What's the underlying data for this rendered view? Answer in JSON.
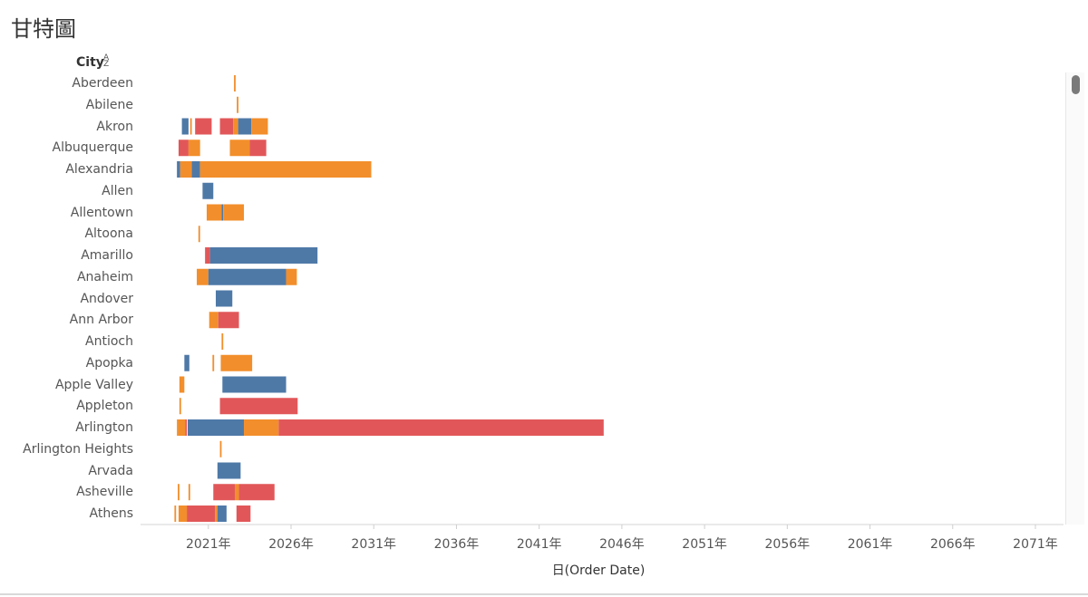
{
  "title": "甘特圖",
  "column_header": "City",
  "sort_icon_name": "sort-alpha-icon",
  "colors": {
    "blue": "#4e79a7",
    "orange": "#f28e2b",
    "red": "#e15759"
  },
  "chart_data": {
    "type": "gantt",
    "x_axis_title": "日(Order Date)",
    "x_unit": "year",
    "xlim": [
      2016.9,
      2072.7
    ],
    "x_ticks": [
      2021,
      2026,
      2031,
      2036,
      2041,
      2046,
      2051,
      2056,
      2061,
      2066,
      2071
    ],
    "x_tick_labels": [
      "2021年",
      "2026年",
      "2031年",
      "2036年",
      "2041年",
      "2046年",
      "2051年",
      "2056年",
      "2061年",
      "2066年",
      "2071年"
    ],
    "categories": [
      "Aberdeen",
      "Abilene",
      "Akron",
      "Albuquerque",
      "Alexandria",
      "Allen",
      "Allentown",
      "Altoona",
      "Amarillo",
      "Anaheim",
      "Andover",
      "Ann Arbor",
      "Antioch",
      "Apopka",
      "Apple Valley",
      "Appleton",
      "Arlington",
      "Arlington Heights",
      "Arvada",
      "Asheville",
      "Athens"
    ],
    "bars": [
      {
        "city": "Aberdeen",
        "segments": [
          {
            "start": 2022.55,
            "end": 2022.65,
            "color": "orange"
          }
        ]
      },
      {
        "city": "Abilene",
        "segments": [
          {
            "start": 2022.72,
            "end": 2022.82,
            "color": "orange"
          }
        ]
      },
      {
        "city": "Akron",
        "segments": [
          {
            "start": 2019.4,
            "end": 2019.8,
            "color": "blue"
          },
          {
            "start": 2019.9,
            "end": 2020.0,
            "color": "orange"
          },
          {
            "start": 2020.2,
            "end": 2021.2,
            "color": "red"
          },
          {
            "start": 2021.7,
            "end": 2022.5,
            "color": "red"
          },
          {
            "start": 2022.5,
            "end": 2022.8,
            "color": "orange"
          },
          {
            "start": 2022.8,
            "end": 2023.6,
            "color": "blue"
          },
          {
            "start": 2023.6,
            "end": 2024.6,
            "color": "orange"
          }
        ]
      },
      {
        "city": "Albuquerque",
        "segments": [
          {
            "start": 2019.2,
            "end": 2019.8,
            "color": "red"
          },
          {
            "start": 2019.8,
            "end": 2020.5,
            "color": "orange"
          },
          {
            "start": 2022.3,
            "end": 2023.5,
            "color": "orange"
          },
          {
            "start": 2023.5,
            "end": 2024.5,
            "color": "red"
          }
        ]
      },
      {
        "city": "Alexandria",
        "segments": [
          {
            "start": 2019.1,
            "end": 2019.3,
            "color": "blue"
          },
          {
            "start": 2019.3,
            "end": 2020.0,
            "color": "orange"
          },
          {
            "start": 2020.0,
            "end": 2020.5,
            "color": "blue"
          },
          {
            "start": 2020.5,
            "end": 2030.85,
            "color": "orange"
          }
        ]
      },
      {
        "city": "Allen",
        "segments": [
          {
            "start": 2020.65,
            "end": 2021.3,
            "color": "blue"
          }
        ]
      },
      {
        "city": "Allentown",
        "segments": [
          {
            "start": 2020.9,
            "end": 2021.8,
            "color": "orange"
          },
          {
            "start": 2021.8,
            "end": 2021.9,
            "color": "blue"
          },
          {
            "start": 2021.9,
            "end": 2023.15,
            "color": "orange"
          }
        ]
      },
      {
        "city": "Altoona",
        "segments": [
          {
            "start": 2020.4,
            "end": 2020.5,
            "color": "orange"
          }
        ]
      },
      {
        "city": "Amarillo",
        "segments": [
          {
            "start": 2020.8,
            "end": 2021.1,
            "color": "red"
          },
          {
            "start": 2021.1,
            "end": 2027.6,
            "color": "blue"
          }
        ]
      },
      {
        "city": "Anaheim",
        "segments": [
          {
            "start": 2020.3,
            "end": 2021.0,
            "color": "orange"
          },
          {
            "start": 2021.0,
            "end": 2025.7,
            "color": "blue"
          },
          {
            "start": 2025.7,
            "end": 2026.35,
            "color": "orange"
          }
        ]
      },
      {
        "city": "Andover",
        "segments": [
          {
            "start": 2021.45,
            "end": 2022.45,
            "color": "blue"
          }
        ]
      },
      {
        "city": "Ann Arbor",
        "segments": [
          {
            "start": 2021.05,
            "end": 2021.6,
            "color": "orange"
          },
          {
            "start": 2021.6,
            "end": 2022.85,
            "color": "red"
          }
        ]
      },
      {
        "city": "Antioch",
        "segments": [
          {
            "start": 2021.8,
            "end": 2021.9,
            "color": "orange"
          }
        ]
      },
      {
        "city": "Apopka",
        "segments": [
          {
            "start": 2019.55,
            "end": 2019.85,
            "color": "blue"
          },
          {
            "start": 2021.25,
            "end": 2021.35,
            "color": "orange"
          },
          {
            "start": 2021.75,
            "end": 2023.65,
            "color": "orange"
          }
        ]
      },
      {
        "city": "Apple Valley",
        "segments": [
          {
            "start": 2019.25,
            "end": 2019.55,
            "color": "orange"
          },
          {
            "start": 2021.85,
            "end": 2025.7,
            "color": "blue"
          }
        ]
      },
      {
        "city": "Appleton",
        "segments": [
          {
            "start": 2019.25,
            "end": 2019.35,
            "color": "orange"
          },
          {
            "start": 2021.7,
            "end": 2026.4,
            "color": "red"
          }
        ]
      },
      {
        "city": "Arlington",
        "segments": [
          {
            "start": 2019.1,
            "end": 2019.2,
            "color": "orange"
          },
          {
            "start": 2019.2,
            "end": 2019.6,
            "color": "orange"
          },
          {
            "start": 2019.6,
            "end": 2019.7,
            "color": "red"
          },
          {
            "start": 2019.75,
            "end": 2023.15,
            "color": "blue"
          },
          {
            "start": 2023.15,
            "end": 2025.25,
            "color": "orange"
          },
          {
            "start": 2025.25,
            "end": 2044.9,
            "color": "red"
          }
        ]
      },
      {
        "city": "Arlington Heights",
        "segments": [
          {
            "start": 2021.7,
            "end": 2021.8,
            "color": "orange"
          }
        ]
      },
      {
        "city": "Arvada",
        "segments": [
          {
            "start": 2021.55,
            "end": 2022.95,
            "color": "blue"
          }
        ]
      },
      {
        "city": "Asheville",
        "segments": [
          {
            "start": 2019.15,
            "end": 2019.25,
            "color": "orange"
          },
          {
            "start": 2019.8,
            "end": 2019.9,
            "color": "orange"
          },
          {
            "start": 2021.3,
            "end": 2022.6,
            "color": "red"
          },
          {
            "start": 2022.6,
            "end": 2022.85,
            "color": "orange"
          },
          {
            "start": 2022.85,
            "end": 2025.0,
            "color": "red"
          }
        ]
      },
      {
        "city": "Athens",
        "segments": [
          {
            "start": 2018.95,
            "end": 2019.05,
            "color": "orange"
          },
          {
            "start": 2019.2,
            "end": 2019.7,
            "color": "orange"
          },
          {
            "start": 2019.7,
            "end": 2021.4,
            "color": "red"
          },
          {
            "start": 2021.4,
            "end": 2021.55,
            "color": "orange"
          },
          {
            "start": 2021.55,
            "end": 2022.1,
            "color": "blue"
          },
          {
            "start": 2022.7,
            "end": 2023.55,
            "color": "red"
          }
        ]
      }
    ]
  }
}
